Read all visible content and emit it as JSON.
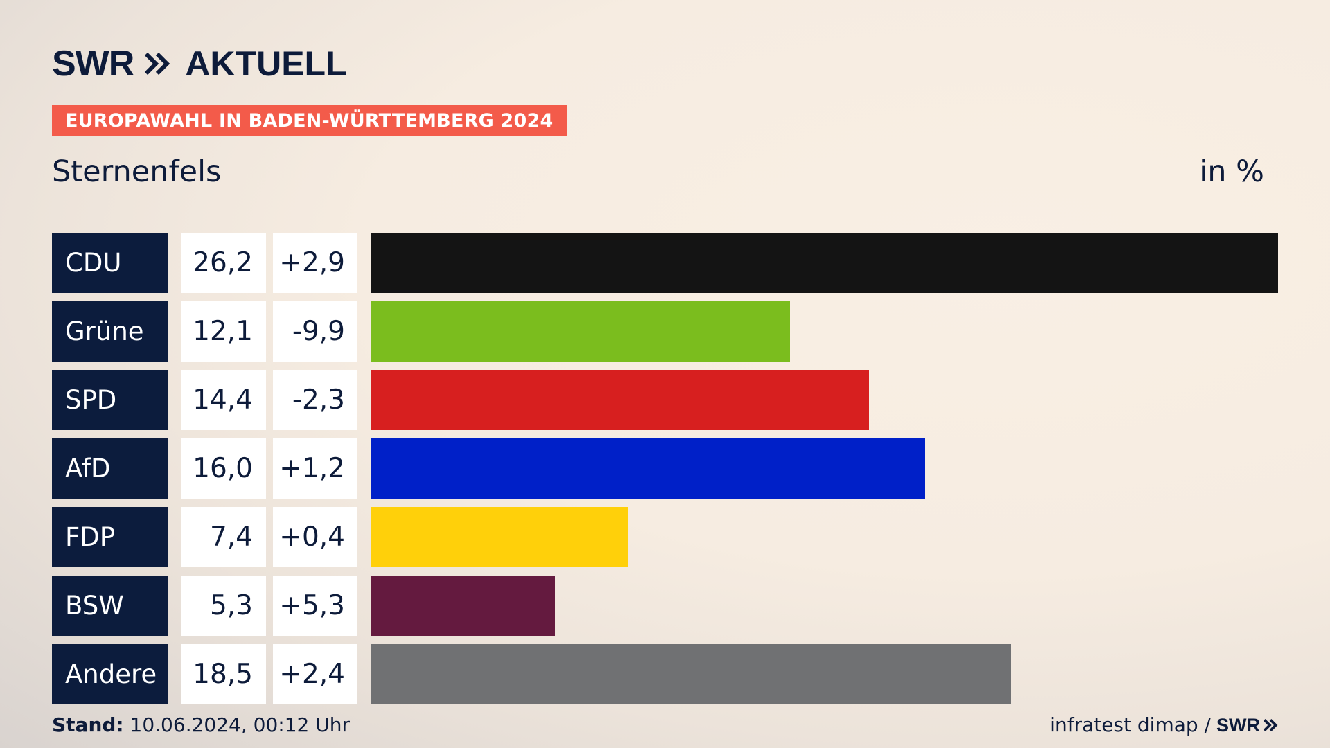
{
  "brand": {
    "swr": "SWR",
    "aktuell": "AKTUELL",
    "chevron_icon": "double-chevron-right-icon"
  },
  "header": {
    "badge": "EUROPAWAHL IN BADEN-WÜRTTEMBERG 2024",
    "place": "Sternenfels",
    "unit": "in %"
  },
  "colors": {
    "navy": "#0c1c3d",
    "badge": "#f35b4a"
  },
  "chart_data": {
    "type": "bar",
    "orientation": "horizontal",
    "categories": [
      "CDU",
      "Grüne",
      "SPD",
      "AfD",
      "FDP",
      "BSW",
      "Andere"
    ],
    "values": [
      26.2,
      12.1,
      14.4,
      16.0,
      7.4,
      5.3,
      18.5
    ],
    "value_labels": [
      "26,2",
      "12,1",
      "14,4",
      "16,0",
      "7,4",
      "5,3",
      "18,5"
    ],
    "diffs": [
      2.9,
      -9.9,
      -2.3,
      1.2,
      0.4,
      5.3,
      2.4
    ],
    "diff_labels": [
      "+2,9",
      "-9,9",
      "-2,3",
      "+1,2",
      "+0,4",
      "+5,3",
      "+2,4"
    ],
    "colors": [
      "#141414",
      "#7bbd1e",
      "#d71f1f",
      "#0020c8",
      "#ffd00a",
      "#641a3f",
      "#707173"
    ],
    "ylabel": "in %",
    "xlim": [
      0,
      26.2
    ]
  },
  "footer": {
    "stand_label": "Stand:",
    "stand_value": "10.06.2024, 00:12 Uhr",
    "source": "infratest dimap /",
    "swr": "SWR"
  }
}
